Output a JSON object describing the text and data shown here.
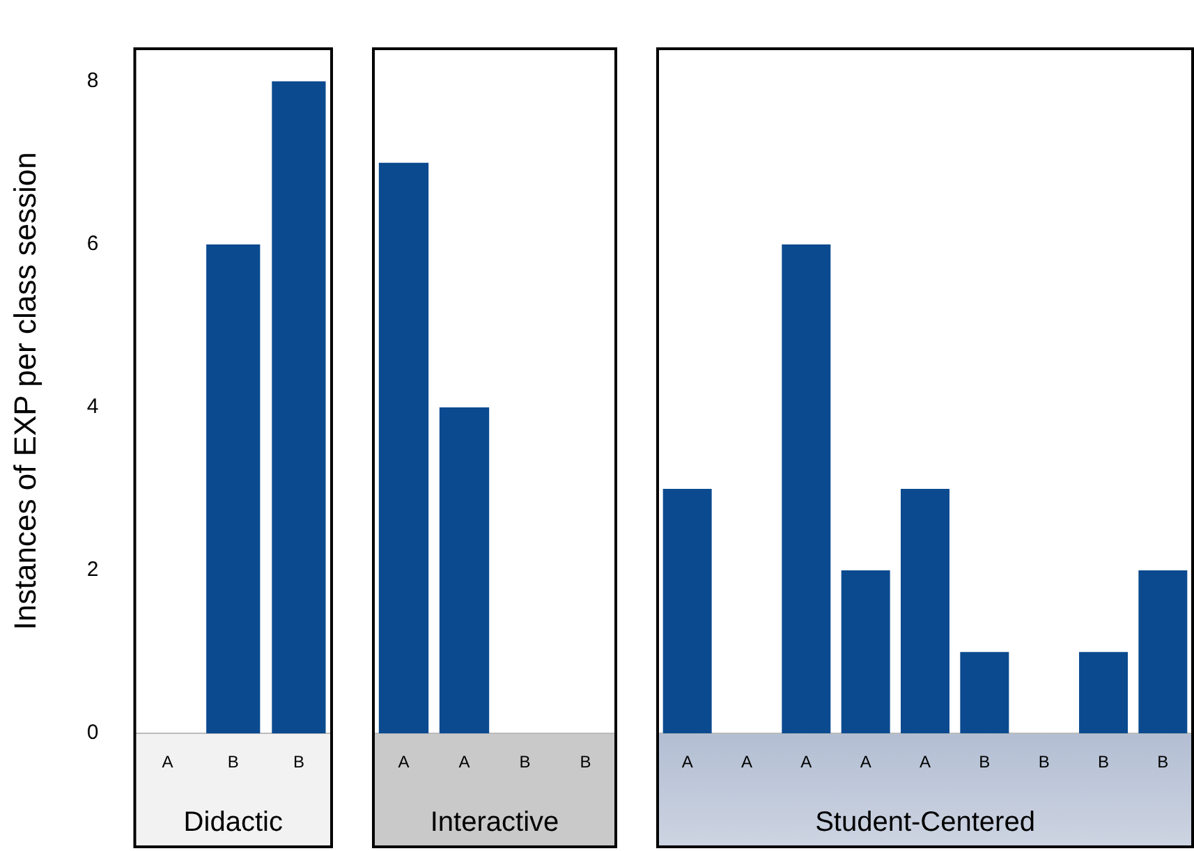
{
  "chart_data": [
    {
      "type": "bar",
      "xlabel": "Didactic",
      "ylabel": "Instances of EXP per class session",
      "categories": [
        "A",
        "B",
        "B"
      ],
      "values": [
        0,
        6,
        8
      ],
      "color": "#0b4a8f",
      "ylim": [
        0,
        8.4
      ],
      "yticks": [
        0,
        2,
        4,
        6,
        8
      ],
      "grid": false,
      "legend": false
    },
    {
      "type": "bar",
      "xlabel": "Interactive",
      "categories": [
        "A",
        "A",
        "B",
        "B"
      ],
      "values": [
        7,
        4,
        0,
        0
      ],
      "color": "#0b4a8f",
      "ylim": [
        0,
        8.4
      ],
      "yticks": [
        0,
        2,
        4,
        6,
        8
      ],
      "tick_labels": "x",
      "grid": false,
      "legend": false
    },
    {
      "type": "bar",
      "xlabel": "Student-Centered",
      "categories": [
        "A",
        "A",
        "A",
        "A",
        "A",
        "B",
        "B",
        "B",
        "B"
      ],
      "values": [
        3,
        0,
        6,
        2,
        3,
        1,
        0,
        1,
        2
      ],
      "color": "#0b4a8f",
      "ylim": [
        0,
        8.4
      ],
      "yticks": [
        0,
        2,
        4,
        6,
        8
      ],
      "tick_labels": "x",
      "grid": false,
      "legend": false
    }
  ]
}
